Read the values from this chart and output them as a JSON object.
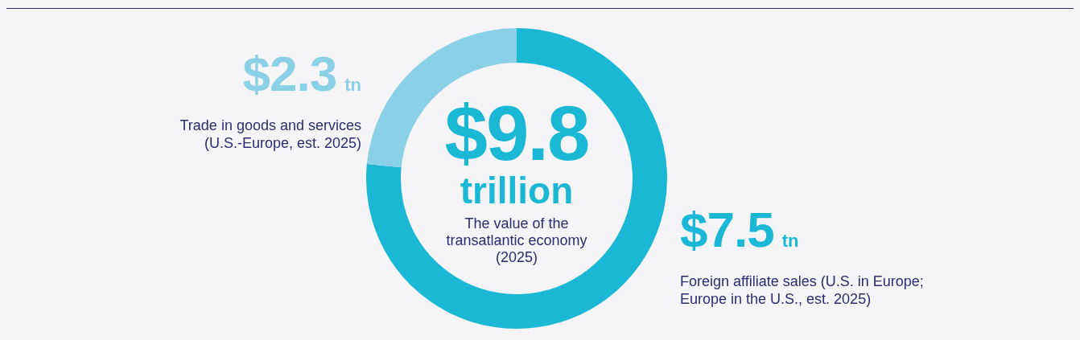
{
  "chart_data": {
    "type": "donut",
    "title": "$9.8 trillion",
    "subtitle": "The value of the transatlantic economy (2025)",
    "categories": [
      "Foreign affiliate sales (U.S. in Europe; Europe in the U.S., est. 2025)",
      "Trade in goods and services (U.S.-Europe, est. 2025)"
    ],
    "values": [
      7.5,
      2.3
    ],
    "value_labels": [
      "$7.5 tn",
      "$2.3 tn"
    ],
    "colors": [
      "#1bb8d6",
      "#8ad0e6"
    ],
    "legend": false
  }
}
